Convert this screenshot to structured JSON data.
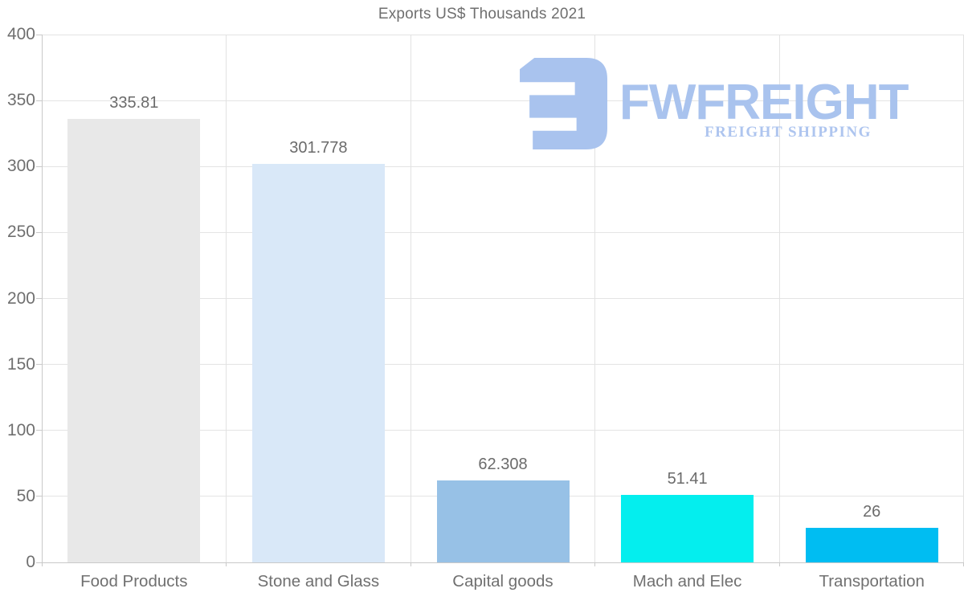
{
  "title": "Exports US$ Thousands 2021",
  "logo": {
    "brand": "FWFREIGHT",
    "tagline": "FREIGHT SHIPPING",
    "glyph_color": "#a9c3ee",
    "brand_color": "#a9c3ee",
    "tagline_color": "#aec5ef"
  },
  "colors": {
    "title_text": "#6f6f6f",
    "axis_text": "#6f6f6f",
    "grid": "#e4e4e4",
    "axis_line": "#c9c9c9",
    "background": "#ffffff"
  },
  "chart_data": {
    "type": "bar",
    "title": "Exports US$ Thousands 2021",
    "categories": [
      "Food Products",
      "Stone and Glass",
      "Capital goods",
      "Mach and Elec",
      "Transportation"
    ],
    "values": [
      335.81,
      301.778,
      62.308,
      51.41,
      26
    ],
    "value_labels": [
      "335.81",
      "301.778",
      "62.308",
      "51.41",
      "26"
    ],
    "bar_colors": [
      "#e8e8e8",
      "#d9e8f8",
      "#97c1e6",
      "#04eeee",
      "#00bdf2"
    ],
    "xlabel": "",
    "ylabel": "",
    "ylim": [
      0,
      400
    ],
    "ytick_step": 50,
    "grid": true,
    "legend": false,
    "value_labels_shown": true
  }
}
